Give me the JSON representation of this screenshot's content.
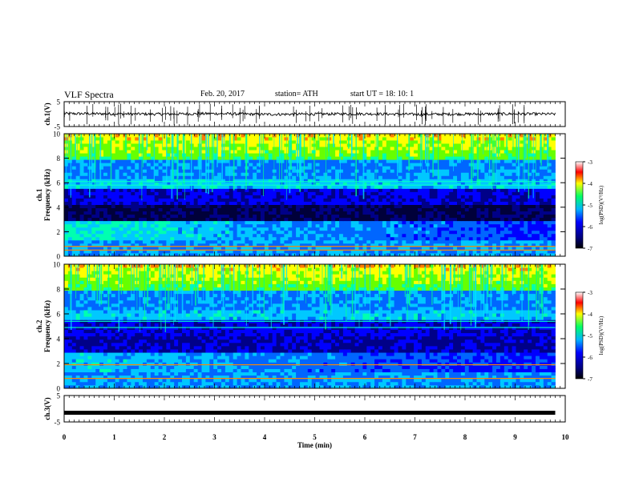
{
  "header": {
    "title": "VLF Spectra",
    "date": "Feb. 20, 2017",
    "station": "station= ATH",
    "start": "start  UT =   18: 10: 1"
  },
  "chart_data": [
    {
      "type": "line",
      "panel": "ch1-waveform",
      "ylabel": "ch.1(V)",
      "ylim": [
        -5,
        5
      ],
      "y_ticks": [
        "5",
        "-5"
      ],
      "x": [
        0,
        1,
        2,
        3,
        4,
        5,
        6,
        7,
        8,
        9,
        9.8
      ],
      "y": [
        0.2,
        0.1,
        0.0,
        0.2,
        -0.1,
        0.0,
        0.1,
        -0.1,
        0.0,
        0.1,
        0.0
      ],
      "color": "#000000"
    },
    {
      "type": "heatmap",
      "panel": "ch1-spectrogram",
      "ylabel_line1": "ch.1",
      "ylabel_line2": "Frequency (kHz)",
      "ylim": [
        0,
        10
      ],
      "y_ticks": [
        "0",
        "2",
        "4",
        "6",
        "8",
        "10"
      ],
      "x_range_min": [
        0,
        9.8
      ],
      "colorbar": {
        "label": "log(PSD)(V²/Hz)",
        "range": [
          -7,
          -3
        ],
        "ticks": [
          "-3",
          "-4",
          "-5",
          "-6",
          "-7"
        ]
      }
    },
    {
      "type": "heatmap",
      "panel": "ch2-spectrogram",
      "ylabel_line1": "ch.2",
      "ylabel_line2": "Frequency (kHz)",
      "ylim": [
        0,
        10
      ],
      "y_ticks": [
        "0",
        "2",
        "4",
        "6",
        "8",
        "10"
      ],
      "x_range_min": [
        0,
        9.8
      ],
      "colorbar": {
        "label": "log(PSD)(V²/Hz)",
        "range": [
          -7,
          -3
        ],
        "ticks": [
          "-3",
          "-4",
          "-5",
          "-6",
          "-7"
        ]
      }
    },
    {
      "type": "line",
      "panel": "ch3-waveform",
      "ylabel": "ch.3(V)",
      "ylim": [
        -5,
        5
      ],
      "y_ticks": [
        "5",
        "-5"
      ],
      "x": [
        0,
        9.8
      ],
      "y": [
        -1.5,
        -1.5
      ],
      "color": "#000000"
    }
  ],
  "xaxis": {
    "label": "Time (min)",
    "ticks": [
      "0",
      "1",
      "2",
      "3",
      "4",
      "5",
      "6",
      "7",
      "8",
      "9",
      "10"
    ],
    "xlim": [
      0,
      10
    ]
  },
  "colors": {
    "cmap": [
      "#000088",
      "#0000ff",
      "#00c8ff",
      "#00ff80",
      "#ffff00",
      "#ff0000"
    ]
  }
}
